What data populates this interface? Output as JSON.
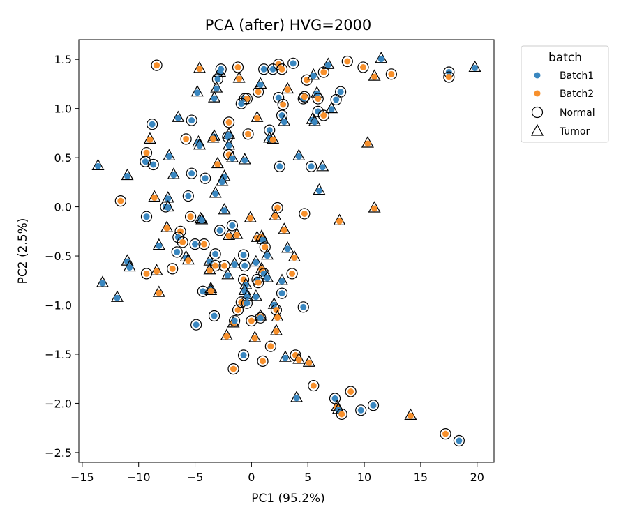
{
  "chart_data": {
    "type": "scatter",
    "title": "PCA (after) HVG=2000",
    "xlabel": "PC1 (95.2%)",
    "ylabel": "PC2 (2.5%)",
    "xlim": [
      -15.3,
      21.5
    ],
    "ylim": [
      -2.6,
      1.7
    ],
    "xticks": [
      -15,
      -10,
      -5,
      0,
      5,
      10,
      15,
      20
    ],
    "xtick_labels": [
      "−15",
      "−10",
      "−5",
      "0",
      "5",
      "10",
      "15",
      "20"
    ],
    "yticks": [
      -2.5,
      -2.0,
      -1.5,
      -1.0,
      -0.5,
      0.0,
      0.5,
      1.0,
      1.5
    ],
    "ytick_labels": [
      "−2.5",
      "−2.0",
      "−1.5",
      "−1.0",
      "−0.5",
      "0.0",
      "0.5",
      "1.0",
      "1.5"
    ],
    "grid": false,
    "legend": {
      "placement": "outside-right-top",
      "title": "batch",
      "entries": [
        {
          "label": "Batch1",
          "kind": "color",
          "color": "#3a87c0"
        },
        {
          "label": "Batch2",
          "kind": "color",
          "color": "#f7902c"
        },
        {
          "label": "Normal",
          "kind": "marker",
          "marker": "circle"
        },
        {
          "label": "Tumor",
          "kind": "marker",
          "marker": "triangle"
        }
      ]
    },
    "colors": {
      "Batch1": "#3a87c0",
      "Batch2": "#f7902c"
    },
    "points": [
      [
        -8.4,
        1.44,
        "B2",
        "N"
      ],
      [
        -4.6,
        1.41,
        "B2",
        "T"
      ],
      [
        -2.8,
        1.37,
        "B1",
        "T"
      ],
      [
        -2.7,
        1.4,
        "B1",
        "N"
      ],
      [
        -3.0,
        1.3,
        "B1",
        "N"
      ],
      [
        -1.2,
        1.42,
        "B2",
        "N"
      ],
      [
        -1.1,
        1.31,
        "B2",
        "T"
      ],
      [
        1.1,
        1.4,
        "B1",
        "N"
      ],
      [
        1.9,
        1.4,
        "B1",
        "N"
      ],
      [
        2.4,
        1.45,
        "B2",
        "N"
      ],
      [
        2.7,
        1.4,
        "B2",
        "N"
      ],
      [
        3.7,
        1.46,
        "B1",
        "N"
      ],
      [
        4.9,
        1.29,
        "B2",
        "N"
      ],
      [
        5.5,
        1.34,
        "B1",
        "T"
      ],
      [
        6.4,
        1.37,
        "B2",
        "N"
      ],
      [
        6.8,
        1.45,
        "B1",
        "T"
      ],
      [
        8.5,
        1.48,
        "B2",
        "N"
      ],
      [
        9.9,
        1.42,
        "B2",
        "N"
      ],
      [
        11.5,
        1.51,
        "B1",
        "T"
      ],
      [
        10.9,
        1.33,
        "B2",
        "T"
      ],
      [
        12.4,
        1.35,
        "B2",
        "N"
      ],
      [
        17.5,
        1.37,
        "B1",
        "N"
      ],
      [
        17.5,
        1.32,
        "B2",
        "N"
      ],
      [
        19.8,
        1.42,
        "B1",
        "T"
      ],
      [
        -4.8,
        1.17,
        "B1",
        "T"
      ],
      [
        -3.1,
        1.21,
        "B1",
        "T"
      ],
      [
        -3.3,
        1.11,
        "B1",
        "T"
      ],
      [
        -0.6,
        1.1,
        "B1",
        "N"
      ],
      [
        -0.4,
        1.1,
        "B2",
        "N"
      ],
      [
        -0.9,
        1.05,
        "B1",
        "N"
      ],
      [
        0.6,
        1.17,
        "B2",
        "N"
      ],
      [
        0.8,
        1.25,
        "B1",
        "T"
      ],
      [
        2.4,
        1.11,
        "B1",
        "N"
      ],
      [
        3.2,
        1.2,
        "B2",
        "T"
      ],
      [
        4.6,
        1.1,
        "B1",
        "N"
      ],
      [
        4.7,
        1.12,
        "B2",
        "N"
      ],
      [
        5.8,
        1.16,
        "B1",
        "T"
      ],
      [
        5.9,
        1.1,
        "B2",
        "N"
      ],
      [
        7.9,
        1.17,
        "B1",
        "N"
      ],
      [
        7.5,
        1.09,
        "B1",
        "N"
      ],
      [
        7.1,
        1.0,
        "B1",
        "T"
      ],
      [
        2.8,
        1.04,
        "B2",
        "N"
      ],
      [
        5.9,
        0.97,
        "B1",
        "N"
      ],
      [
        6.4,
        0.93,
        "B2",
        "N"
      ],
      [
        -8.8,
        0.84,
        "B1",
        "N"
      ],
      [
        -6.5,
        0.91,
        "B1",
        "T"
      ],
      [
        -5.3,
        0.88,
        "B1",
        "N"
      ],
      [
        -2.0,
        0.86,
        "B2",
        "N"
      ],
      [
        0.5,
        0.91,
        "B2",
        "T"
      ],
      [
        2.7,
        0.93,
        "B1",
        "N"
      ],
      [
        2.9,
        0.87,
        "B1",
        "T"
      ],
      [
        5.4,
        0.89,
        "B1",
        "T"
      ],
      [
        5.6,
        0.87,
        "B1",
        "T"
      ],
      [
        -2.0,
        0.74,
        "B1",
        "T"
      ],
      [
        -0.3,
        0.74,
        "B2",
        "N"
      ],
      [
        1.6,
        0.78,
        "B1",
        "N"
      ],
      [
        -5.8,
        0.69,
        "B2",
        "N"
      ],
      [
        -4.7,
        0.66,
        "B1",
        "T"
      ],
      [
        -4.6,
        0.63,
        "B1",
        "T"
      ],
      [
        -3.3,
        0.72,
        "B1",
        "T"
      ],
      [
        -3.4,
        0.7,
        "B2",
        "T"
      ],
      [
        -2.1,
        0.71,
        "B1",
        "N"
      ],
      [
        -2.0,
        0.63,
        "B1",
        "T"
      ],
      [
        1.6,
        0.7,
        "B1",
        "T"
      ],
      [
        1.9,
        0.69,
        "B2",
        "T"
      ],
      [
        -9.0,
        0.69,
        "B2",
        "T"
      ],
      [
        -9.3,
        0.55,
        "B2",
        "N"
      ],
      [
        -7.3,
        0.52,
        "B1",
        "T"
      ],
      [
        -2.0,
        0.53,
        "B2",
        "N"
      ],
      [
        -1.7,
        0.5,
        "B1",
        "T"
      ],
      [
        -0.6,
        0.48,
        "B1",
        "T"
      ],
      [
        -3.0,
        0.44,
        "B2",
        "T"
      ],
      [
        -9.4,
        0.46,
        "B1",
        "N"
      ],
      [
        -8.7,
        0.43,
        "B1",
        "N"
      ],
      [
        -13.6,
        0.42,
        "B1",
        "T"
      ],
      [
        -11.0,
        0.32,
        "B1",
        "T"
      ],
      [
        -6.9,
        0.33,
        "B1",
        "T"
      ],
      [
        -5.3,
        0.34,
        "B1",
        "N"
      ],
      [
        -4.1,
        0.29,
        "B1",
        "N"
      ],
      [
        -2.4,
        0.31,
        "B1",
        "T"
      ],
      [
        -2.6,
        0.26,
        "B1",
        "T"
      ],
      [
        2.5,
        0.41,
        "B1",
        "N"
      ],
      [
        4.2,
        0.52,
        "B1",
        "T"
      ],
      [
        5.3,
        0.41,
        "B1",
        "N"
      ],
      [
        6.3,
        0.41,
        "B1",
        "T"
      ],
      [
        10.3,
        0.65,
        "B2",
        "T"
      ],
      [
        -3.2,
        0.14,
        "B1",
        "T"
      ],
      [
        -5.6,
        0.11,
        "B1",
        "N"
      ],
      [
        -8.6,
        0.1,
        "B2",
        "T"
      ],
      [
        -7.4,
        0.09,
        "B1",
        "T"
      ],
      [
        -11.6,
        0.06,
        "B2",
        "N"
      ],
      [
        -7.6,
        0.0,
        "B1",
        "N"
      ],
      [
        -7.4,
        0.0,
        "B1",
        "T"
      ],
      [
        6.0,
        0.17,
        "B1",
        "T"
      ],
      [
        2.3,
        -0.01,
        "B2",
        "N"
      ],
      [
        -2.4,
        -0.03,
        "B1",
        "T"
      ],
      [
        -0.1,
        -0.11,
        "B2",
        "T"
      ],
      [
        2.1,
        -0.09,
        "B2",
        "T"
      ],
      [
        4.7,
        -0.07,
        "B2",
        "N"
      ],
      [
        10.9,
        -0.01,
        "B2",
        "T"
      ],
      [
        7.8,
        -0.14,
        "B2",
        "T"
      ],
      [
        -9.3,
        -0.1,
        "B1",
        "N"
      ],
      [
        -5.4,
        -0.1,
        "B2",
        "N"
      ],
      [
        -4.5,
        -0.12,
        "B1",
        "T"
      ],
      [
        -4.4,
        -0.13,
        "B1",
        "T"
      ],
      [
        -1.7,
        -0.19,
        "B1",
        "N"
      ],
      [
        -7.5,
        -0.21,
        "B2",
        "T"
      ],
      [
        -6.3,
        -0.25,
        "B2",
        "N"
      ],
      [
        -2.8,
        -0.24,
        "B1",
        "N"
      ],
      [
        -2.0,
        -0.29,
        "B2",
        "T"
      ],
      [
        -1.3,
        -0.28,
        "B2",
        "T"
      ],
      [
        0.5,
        -0.31,
        "B2",
        "T"
      ],
      [
        0.9,
        -0.3,
        "B2",
        "T"
      ],
      [
        1.0,
        -0.33,
        "B1",
        "T"
      ],
      [
        2.9,
        -0.23,
        "B2",
        "T"
      ],
      [
        -6.5,
        -0.31,
        "B1",
        "N"
      ],
      [
        -6.1,
        -0.36,
        "B2",
        "N"
      ],
      [
        -8.2,
        -0.39,
        "B1",
        "T"
      ],
      [
        -5.0,
        -0.38,
        "B1",
        "N"
      ],
      [
        -4.2,
        -0.38,
        "B2",
        "N"
      ],
      [
        1.2,
        -0.41,
        "B2",
        "N"
      ],
      [
        3.2,
        -0.42,
        "B1",
        "T"
      ],
      [
        -6.6,
        -0.46,
        "B1",
        "N"
      ],
      [
        -5.8,
        -0.51,
        "B1",
        "T"
      ],
      [
        -5.6,
        -0.54,
        "B2",
        "T"
      ],
      [
        -3.2,
        -0.48,
        "B1",
        "N"
      ],
      [
        -0.7,
        -0.49,
        "B1",
        "N"
      ],
      [
        1.4,
        -0.49,
        "B1",
        "T"
      ],
      [
        3.8,
        -0.51,
        "B2",
        "T"
      ],
      [
        -11.0,
        -0.55,
        "B1",
        "T"
      ],
      [
        -10.8,
        -0.61,
        "B1",
        "T"
      ],
      [
        -3.7,
        -0.55,
        "B1",
        "T"
      ],
      [
        -3.2,
        -0.6,
        "B2",
        "N"
      ],
      [
        -3.7,
        -0.64,
        "B2",
        "T"
      ],
      [
        -2.4,
        -0.6,
        "B2",
        "N"
      ],
      [
        -1.5,
        -0.58,
        "B1",
        "T"
      ],
      [
        -0.6,
        -0.6,
        "B1",
        "N"
      ],
      [
        0.4,
        -0.56,
        "B1",
        "T"
      ],
      [
        0.9,
        -0.63,
        "B2",
        "T"
      ],
      [
        -8.4,
        -0.65,
        "B2",
        "T"
      ],
      [
        -7.0,
        -0.63,
        "B2",
        "N"
      ],
      [
        -9.3,
        -0.68,
        "B2",
        "N"
      ],
      [
        -2.1,
        -0.69,
        "B1",
        "T"
      ],
      [
        1.1,
        -0.68,
        "B1",
        "N"
      ],
      [
        1.4,
        -0.72,
        "B1",
        "T"
      ],
      [
        3.6,
        -0.68,
        "B2",
        "N"
      ],
      [
        -13.2,
        -0.77,
        "B1",
        "T"
      ],
      [
        -0.7,
        -0.74,
        "B2",
        "N"
      ],
      [
        -0.5,
        -0.79,
        "B1",
        "T"
      ],
      [
        0.5,
        -0.74,
        "B1",
        "N"
      ],
      [
        0.6,
        -0.77,
        "B2",
        "N"
      ],
      [
        2.7,
        -0.75,
        "B1",
        "T"
      ],
      [
        -4.3,
        -0.86,
        "B1",
        "N"
      ],
      [
        -3.6,
        -0.83,
        "B1",
        "T"
      ],
      [
        -3.6,
        -0.85,
        "B2",
        "T"
      ],
      [
        -0.6,
        -0.85,
        "B1",
        "T"
      ],
      [
        -0.4,
        -0.91,
        "B1",
        "T"
      ],
      [
        0.4,
        -0.91,
        "B1",
        "T"
      ],
      [
        2.7,
        -0.88,
        "B1",
        "N"
      ],
      [
        -8.2,
        -0.87,
        "B2",
        "T"
      ],
      [
        -11.9,
        -0.92,
        "B1",
        "T"
      ],
      [
        -0.9,
        -0.97,
        "B2",
        "N"
      ],
      [
        -0.4,
        -0.98,
        "B1",
        "N"
      ],
      [
        2.0,
        -0.99,
        "B1",
        "T"
      ],
      [
        4.6,
        -1.02,
        "B1",
        "N"
      ],
      [
        -1.2,
        -1.05,
        "B2",
        "N"
      ],
      [
        2.2,
        -1.05,
        "B2",
        "N"
      ],
      [
        -3.3,
        -1.11,
        "B1",
        "N"
      ],
      [
        0.8,
        -1.11,
        "B2",
        "T"
      ],
      [
        0.8,
        -1.13,
        "B1",
        "N"
      ],
      [
        2.3,
        -1.12,
        "B2",
        "T"
      ],
      [
        -1.6,
        -1.18,
        "B2",
        "T"
      ],
      [
        -1.5,
        -1.16,
        "B1",
        "N"
      ],
      [
        0.0,
        -1.16,
        "B2",
        "N"
      ],
      [
        -4.9,
        -1.2,
        "B1",
        "N"
      ],
      [
        2.2,
        -1.26,
        "B2",
        "T"
      ],
      [
        -2.2,
        -1.31,
        "B2",
        "T"
      ],
      [
        0.3,
        -1.33,
        "B2",
        "T"
      ],
      [
        1.7,
        -1.42,
        "B2",
        "N"
      ],
      [
        -0.7,
        -1.51,
        "B1",
        "N"
      ],
      [
        1.0,
        -1.57,
        "B2",
        "N"
      ],
      [
        3.0,
        -1.53,
        "B1",
        "T"
      ],
      [
        3.9,
        -1.51,
        "B2",
        "N"
      ],
      [
        4.2,
        -1.55,
        "B2",
        "T"
      ],
      [
        5.1,
        -1.58,
        "B2",
        "T"
      ],
      [
        -1.6,
        -1.65,
        "B2",
        "N"
      ],
      [
        5.5,
        -1.82,
        "B2",
        "N"
      ],
      [
        4.0,
        -1.94,
        "B1",
        "T"
      ],
      [
        7.4,
        -1.95,
        "B1",
        "N"
      ],
      [
        8.8,
        -1.88,
        "B2",
        "N"
      ],
      [
        7.6,
        -2.03,
        "B2",
        "T"
      ],
      [
        7.7,
        -2.06,
        "B1",
        "T"
      ],
      [
        8.0,
        -2.11,
        "B2",
        "N"
      ],
      [
        9.7,
        -2.07,
        "B1",
        "N"
      ],
      [
        10.8,
        -2.02,
        "B1",
        "N"
      ],
      [
        14.1,
        -2.12,
        "B2",
        "T"
      ],
      [
        17.2,
        -2.31,
        "B2",
        "N"
      ],
      [
        18.4,
        -2.38,
        "B1",
        "N"
      ]
    ]
  }
}
